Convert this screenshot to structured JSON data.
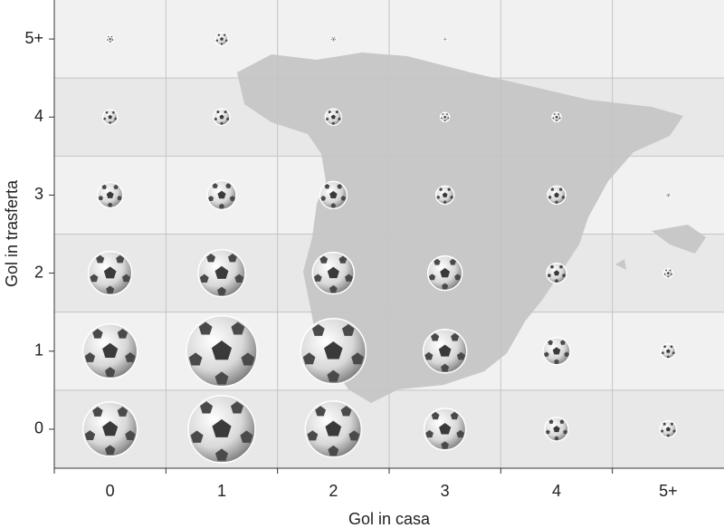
{
  "chart_data": {
    "type": "bubble-grid",
    "xlabel": "Gol in casa",
    "ylabel": "Gol in trasferta",
    "xcategories": [
      "0",
      "1",
      "2",
      "3",
      "4",
      "5+"
    ],
    "ycategories": [
      "0",
      "1",
      "2",
      "3",
      "4",
      "5+"
    ],
    "sizes": [
      [
        60,
        74,
        62,
        46,
        26,
        18
      ],
      [
        60,
        78,
        72,
        48,
        30,
        16
      ],
      [
        48,
        52,
        46,
        38,
        22,
        10
      ],
      [
        28,
        32,
        30,
        20,
        20,
        5
      ],
      [
        16,
        18,
        18,
        10,
        10,
        null
      ],
      [
        8,
        14,
        6,
        4,
        null,
        null
      ]
    ],
    "grid": true
  }
}
